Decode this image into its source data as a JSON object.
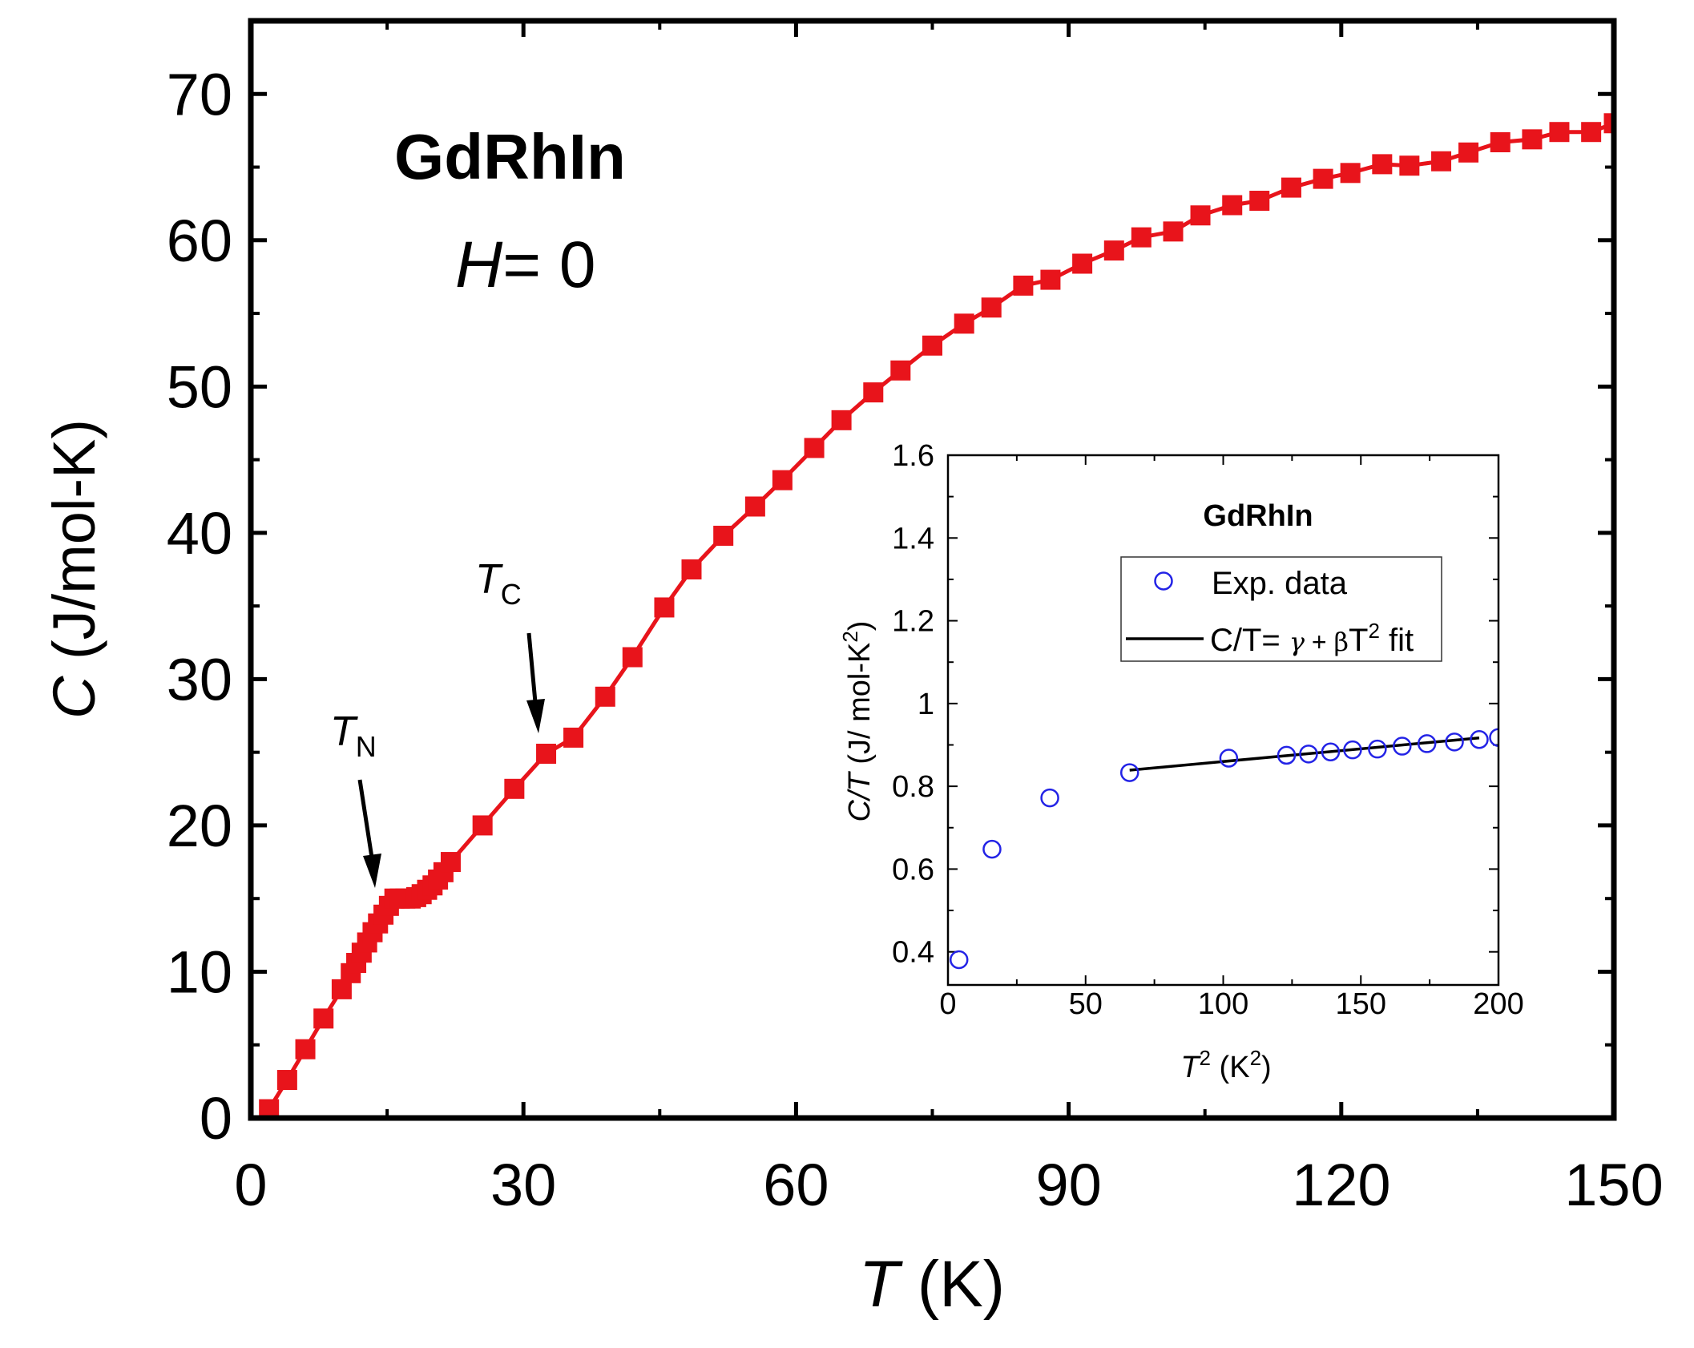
{
  "chart_data": [
    {
      "type": "scatter",
      "id": "main",
      "title": "",
      "sample_label": "GdRhIn",
      "field_label_var": "H",
      "field_label_rest": "= 0",
      "xlabel_var": "T",
      "xlabel_unit": " (K)",
      "ylabel_var": "C",
      "ylabel_unit": " (J/mol-K)",
      "xlim": [
        0,
        150
      ],
      "ylim": [
        0,
        75
      ],
      "xticks": [
        0,
        30,
        60,
        90,
        120,
        150
      ],
      "yticks": [
        0,
        10,
        20,
        30,
        40,
        50,
        60,
        70
      ],
      "grid": false,
      "marker": "filled-square",
      "color": "#e8141b",
      "annotations": [
        {
          "var": "T",
          "sub": "N",
          "at": [
            14.2,
            15.3
          ]
        },
        {
          "var": "T",
          "sub": "C",
          "at": [
            32.2,
            24.9
          ]
        }
      ],
      "series": [
        {
          "name": "C(T)",
          "x": [
            2.0,
            4.0,
            6.0,
            8.0,
            10.0,
            11.0,
            11.6,
            12.2,
            12.8,
            13.4,
            14.0,
            14.6,
            15.2,
            15.8,
            16.4,
            17.0,
            17.6,
            18.2,
            18.8,
            19.4,
            20.0,
            20.6,
            21.2,
            22.0,
            25.5,
            29.0,
            32.5,
            35.5,
            39.0,
            42.0,
            45.5,
            48.5,
            52.0,
            55.5,
            58.5,
            62.0,
            65.0,
            68.5,
            71.5,
            75.0,
            78.5,
            81.5,
            85.0,
            88.0,
            91.5,
            95.0,
            98.0,
            101.5,
            104.5,
            108.0,
            111.0,
            114.5,
            118.0,
            121.0,
            124.5,
            127.5,
            131.0,
            134.0,
            137.5,
            141.0,
            144.0,
            147.5,
            150.0
          ],
          "y": [
            0.6,
            2.6,
            4.7,
            6.8,
            8.8,
            9.9,
            10.6,
            11.3,
            12.0,
            12.7,
            13.3,
            13.9,
            14.5,
            15.0,
            15.0,
            15.0,
            15.0,
            15.1,
            15.3,
            15.6,
            15.9,
            16.3,
            16.8,
            17.5,
            20.0,
            22.5,
            24.9,
            26.0,
            28.8,
            31.5,
            34.9,
            37.5,
            39.8,
            41.8,
            43.6,
            45.8,
            47.7,
            49.6,
            51.1,
            52.8,
            54.3,
            55.4,
            56.9,
            57.3,
            58.4,
            59.3,
            60.2,
            60.6,
            61.7,
            62.4,
            62.7,
            63.6,
            64.2,
            64.6,
            65.2,
            65.1,
            65.4,
            66.0,
            66.7,
            66.9,
            67.4,
            67.4,
            68.0
          ]
        }
      ]
    },
    {
      "type": "scatter",
      "id": "inset",
      "title": "GdRhIn",
      "xlabel_var": "T",
      "xlabel_sup": "2",
      "xlabel_mid": " (K",
      "xlabel_sup2": "2",
      "xlabel_end": ")",
      "ylabel_var": "C/T",
      "ylabel_mid": " (J/ mol-K",
      "ylabel_sup": "2",
      "ylabel_end": ")",
      "xlim": [
        0,
        200
      ],
      "ylim": [
        0.32,
        1.6
      ],
      "xticks": [
        0,
        50,
        100,
        150,
        200
      ],
      "yticks": [
        0.4,
        0.6,
        0.8,
        1.0,
        1.2,
        1.4,
        1.6
      ],
      "ytick_labels": [
        "0.4",
        "0.6",
        "0.8",
        "1",
        "1.2",
        "1.4",
        "1.6"
      ],
      "grid": false,
      "legend_position": "upper-center",
      "series": [
        {
          "name": "Exp. data",
          "marker": "open-circle",
          "color": "#2323e6",
          "x": [
            4,
            16,
            37,
            66,
            102,
            123,
            131,
            139,
            147,
            156,
            165,
            174,
            184,
            193,
            200
          ],
          "y": [
            0.381,
            0.648,
            0.772,
            0.833,
            0.868,
            0.875,
            0.878,
            0.883,
            0.888,
            0.89,
            0.897,
            0.903,
            0.907,
            0.913,
            0.918
          ]
        },
        {
          "name": "fit",
          "legend_prefix": "C/T= ",
          "legend_symbol1": "γ",
          "legend_plus": " + ",
          "legend_symbol2": "β",
          "legend_var": "T",
          "legend_sup": "2",
          "legend_suffix": " fit",
          "type": "line",
          "color": "#000000",
          "x": [
            66,
            193
          ],
          "y": [
            0.839,
            0.917
          ]
        }
      ]
    }
  ]
}
